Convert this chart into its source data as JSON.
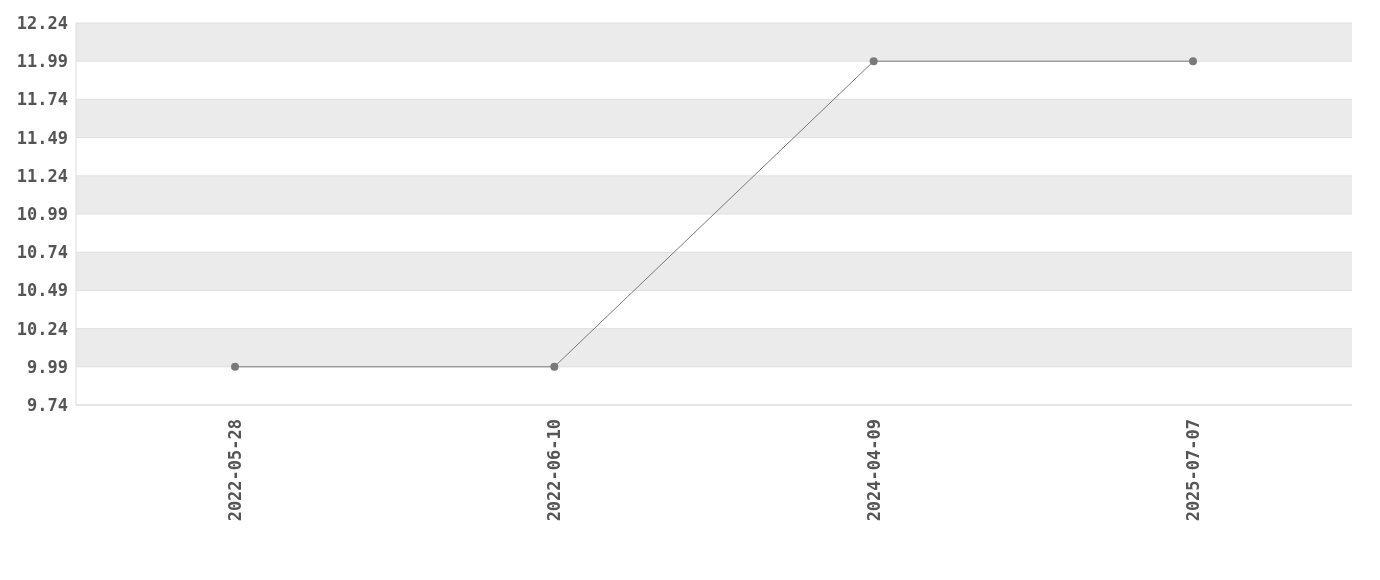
{
  "chart_data": {
    "type": "line",
    "categories": [
      "2022-05-28",
      "2022-06-10",
      "2024-04-09",
      "2025-07-07"
    ],
    "series": [
      {
        "color": "#7a7a7a",
        "values": [
          9.99,
          9.99,
          11.99,
          11.99
        ]
      }
    ],
    "ylim": [
      9.74,
      12.24
    ],
    "yticks": [
      9.74,
      9.99,
      10.24,
      10.49,
      10.74,
      10.99,
      11.24,
      11.49,
      11.74,
      11.99,
      12.24
    ],
    "grid": "y",
    "marker": "circle",
    "line_style": "solid",
    "legend": false
  }
}
